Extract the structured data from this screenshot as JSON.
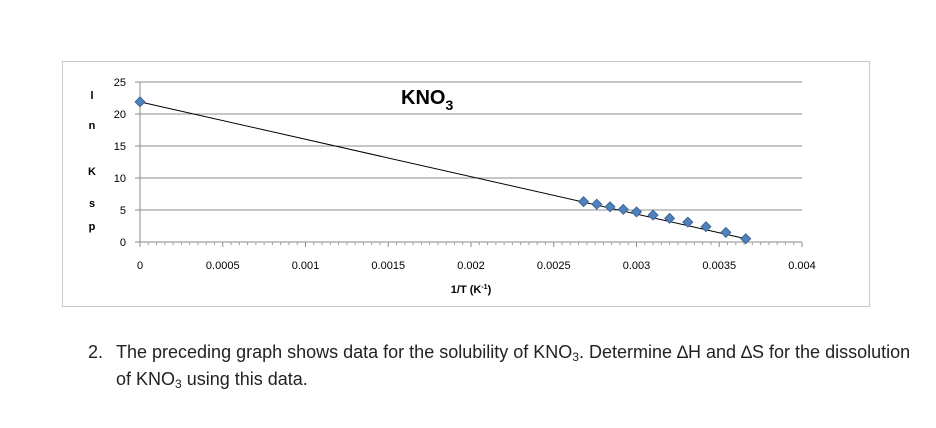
{
  "chart_data": {
    "type": "scatter",
    "title": "KNO",
    "title_subscript": "3",
    "xlabel": "1/T (K",
    "xlabel_superscript": "-1",
    "xlabel_close": ")",
    "ylabel_letters": [
      "l",
      "n",
      "",
      "K",
      "s",
      "p"
    ],
    "xlim": [
      0,
      0.004
    ],
    "ylim": [
      0,
      25
    ],
    "x_ticks": [
      "0",
      "0.0005",
      "0.001",
      "0.0015",
      "0.002",
      "0.0025",
      "0.003",
      "0.0035",
      "0.004"
    ],
    "y_ticks": [
      "0",
      "5",
      "10",
      "15",
      "20",
      "25"
    ],
    "grid": "horizontal",
    "points": [
      {
        "x": 0,
        "y": 21.9
      },
      {
        "x": 0.00268,
        "y": 6.3
      },
      {
        "x": 0.00276,
        "y": 5.9
      },
      {
        "x": 0.00284,
        "y": 5.5
      },
      {
        "x": 0.00292,
        "y": 5.1
      },
      {
        "x": 0.003,
        "y": 4.7
      },
      {
        "x": 0.0031,
        "y": 4.2
      },
      {
        "x": 0.0032,
        "y": 3.7
      },
      {
        "x": 0.00331,
        "y": 3.1
      },
      {
        "x": 0.00342,
        "y": 2.4
      },
      {
        "x": 0.00354,
        "y": 1.5
      },
      {
        "x": 0.00366,
        "y": 0.5
      }
    ],
    "trendline": [
      {
        "x": 0,
        "y": 21.9
      },
      {
        "x": 0.00366,
        "y": 0.5
      }
    ],
    "marker_color": "#4f81bd",
    "marker_edge_color": "#385d8a",
    "line_color": "#000000"
  },
  "question": {
    "number": "2.",
    "parts": [
      {
        "text": "The preceding graph shows data for the solubility of KNO"
      },
      {
        "sub": "3"
      },
      {
        "text": ".  Determine ∆H and ∆S for the dissolution of KNO"
      },
      {
        "sub": "3"
      },
      {
        "text": " using this data."
      }
    ]
  }
}
